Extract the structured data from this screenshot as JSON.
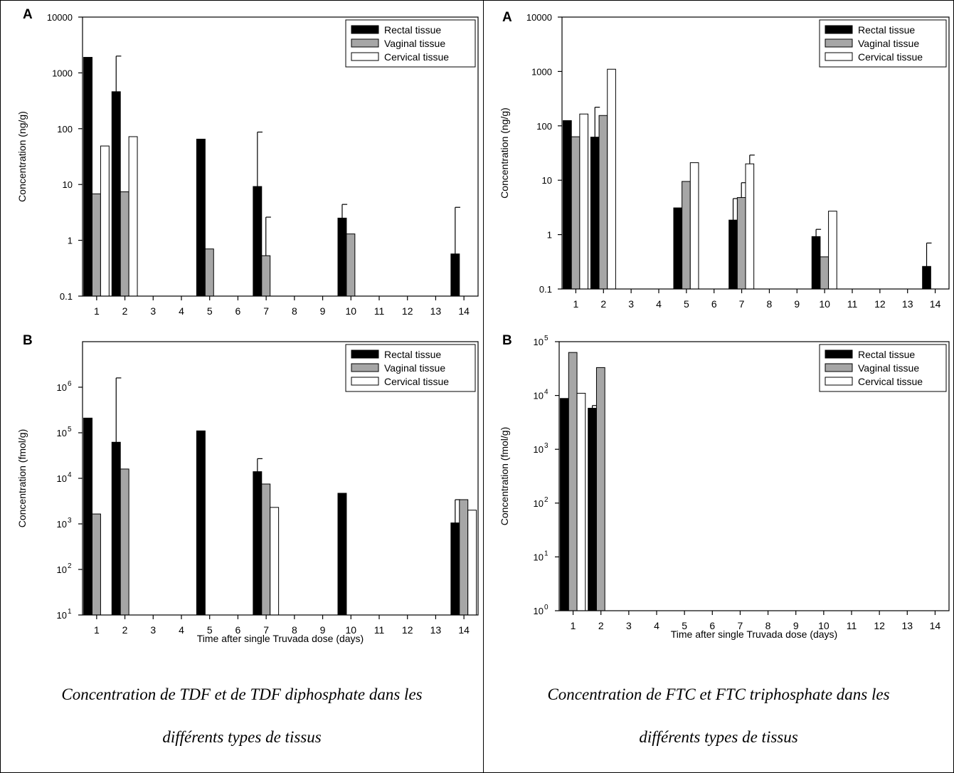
{
  "legend": [
    "Rectal tissue",
    "Vaginal tissue",
    "Cervical tissue"
  ],
  "colors": {
    "rectal": "#000000",
    "vaginal": "#a6a6a6",
    "cervical": "#ffffff",
    "axis": "#000000"
  },
  "captions": {
    "left": [
      "Concentration de TDF et de TDF diphosphate dans les",
      "différents types de tissus"
    ],
    "right": [
      "Concentration de FTC et FTC triphosphate dans les",
      "différents types de tissus"
    ]
  },
  "chart_data": [
    {
      "panel": "A",
      "type": "bar",
      "scale": "log",
      "ylabel": "Concentration (ng/g)",
      "xlabel": "",
      "ylim": [
        0.1,
        10000
      ],
      "yticks": [
        0.1,
        1,
        10,
        100,
        1000,
        10000
      ],
      "ytick_labels": [
        "0.1",
        "1",
        "10",
        "100",
        "1000",
        "10000"
      ],
      "categories": [
        "1",
        "2",
        "3",
        "4",
        "5",
        "6",
        "7",
        "8",
        "9",
        "10",
        "11",
        "12",
        "13",
        "14"
      ],
      "series": [
        {
          "name": "Rectal tissue",
          "values": [
            1900,
            460,
            null,
            null,
            65,
            null,
            9.2,
            null,
            null,
            2.5,
            null,
            null,
            null,
            0.57
          ],
          "errors": [
            null,
            2000,
            null,
            null,
            null,
            null,
            87,
            null,
            null,
            4.4,
            null,
            null,
            null,
            3.9
          ]
        },
        {
          "name": "Vaginal tissue",
          "values": [
            6.8,
            7.4,
            null,
            null,
            0.7,
            null,
            0.53,
            null,
            null,
            1.3,
            null,
            null,
            null,
            null
          ],
          "errors": [
            null,
            null,
            null,
            null,
            null,
            null,
            2.6,
            null,
            null,
            null,
            null,
            null,
            null,
            null
          ]
        },
        {
          "name": "Cervical tissue",
          "values": [
            49,
            72,
            null,
            null,
            null,
            null,
            null,
            null,
            null,
            null,
            null,
            null,
            null,
            null
          ],
          "errors": [
            null,
            null,
            null,
            null,
            null,
            null,
            null,
            null,
            null,
            null,
            null,
            null,
            null,
            null
          ]
        }
      ]
    },
    {
      "panel": "B",
      "type": "bar",
      "scale": "log",
      "ylabel": "Concentration (fmol/g)",
      "xlabel": "Time after single Truvada dose (days)",
      "ylim": [
        10,
        10000000
      ],
      "yticks": [
        10,
        100,
        1000,
        10000,
        100000,
        1000000
      ],
      "ytick_labels": [
        [
          "10",
          "1"
        ],
        [
          "10",
          "2"
        ],
        [
          "10",
          "3"
        ],
        [
          "10",
          "4"
        ],
        [
          "10",
          "5"
        ],
        [
          "10",
          "6"
        ]
      ],
      "categories": [
        "1",
        "2",
        "3",
        "4",
        "5",
        "6",
        "7",
        "8",
        "9",
        "10",
        "11",
        "12",
        "13",
        "14"
      ],
      "series": [
        {
          "name": "Rectal tissue",
          "values": [
            210000,
            62000,
            null,
            null,
            110000,
            null,
            14000,
            null,
            null,
            4700,
            null,
            null,
            null,
            1050
          ],
          "errors": [
            null,
            1600000,
            null,
            null,
            null,
            null,
            27000,
            null,
            null,
            null,
            null,
            null,
            null,
            3400
          ]
        },
        {
          "name": "Vaginal tissue",
          "values": [
            1650,
            16000,
            null,
            null,
            null,
            null,
            7500,
            null,
            null,
            null,
            null,
            null,
            null,
            3400
          ],
          "errors": [
            null,
            null,
            null,
            null,
            null,
            null,
            null,
            null,
            null,
            null,
            null,
            null,
            null,
            null
          ]
        },
        {
          "name": "Cervical tissue",
          "values": [
            null,
            null,
            null,
            null,
            null,
            null,
            2300,
            null,
            null,
            null,
            null,
            null,
            null,
            2000
          ],
          "errors": [
            null,
            null,
            null,
            null,
            null,
            null,
            null,
            null,
            null,
            null,
            null,
            null,
            null,
            null
          ]
        }
      ]
    },
    {
      "panel": "A",
      "type": "bar",
      "scale": "log",
      "ylabel": "Concentration (ng/g)",
      "xlabel": "",
      "ylim": [
        0.1,
        10000
      ],
      "yticks": [
        0.1,
        1,
        10,
        100,
        1000,
        10000
      ],
      "ytick_labels": [
        "0.1",
        "1",
        "10",
        "100",
        "1000",
        "10000"
      ],
      "categories": [
        "1",
        "2",
        "3",
        "4",
        "5",
        "6",
        "7",
        "8",
        "9",
        "10",
        "11",
        "12",
        "13",
        "14"
      ],
      "series": [
        {
          "name": "Rectal tissue",
          "values": [
            125,
            62,
            null,
            null,
            3.1,
            null,
            1.85,
            null,
            null,
            0.92,
            null,
            null,
            null,
            0.26
          ],
          "errors": [
            null,
            220,
            null,
            null,
            null,
            null,
            4.6,
            null,
            null,
            1.25,
            null,
            null,
            null,
            0.7
          ]
        },
        {
          "name": "Vaginal tissue",
          "values": [
            63,
            155,
            null,
            null,
            9.5,
            null,
            4.8,
            null,
            null,
            0.39,
            null,
            null,
            null,
            null
          ],
          "errors": [
            null,
            null,
            null,
            null,
            null,
            null,
            9,
            null,
            null,
            null,
            null,
            null,
            null,
            null
          ]
        },
        {
          "name": "Cervical tissue",
          "values": [
            165,
            1100,
            null,
            null,
            21,
            null,
            20,
            null,
            null,
            2.7,
            null,
            null,
            null,
            null
          ],
          "errors": [
            null,
            null,
            null,
            null,
            null,
            null,
            29,
            null,
            null,
            null,
            null,
            null,
            null,
            null
          ]
        }
      ]
    },
    {
      "panel": "B",
      "type": "bar",
      "scale": "log",
      "ylabel": "Concentration (fmol/g)",
      "xlabel": "Time after single Truvada dose (days)",
      "ylim": [
        1,
        100000
      ],
      "yticks": [
        1,
        10,
        100,
        1000,
        10000,
        100000
      ],
      "ytick_labels": [
        [
          "10",
          "0"
        ],
        [
          "10",
          "1"
        ],
        [
          "10",
          "2"
        ],
        [
          "10",
          "3"
        ],
        [
          "10",
          "4"
        ],
        [
          "10",
          "5"
        ]
      ],
      "categories": [
        "1",
        "2",
        "3",
        "4",
        "5",
        "6",
        "7",
        "8",
        "9",
        "10",
        "11",
        "12",
        "13",
        "14"
      ],
      "series": [
        {
          "name": "Rectal tissue",
          "values": [
            8800,
            5800,
            null,
            null,
            null,
            null,
            null,
            null,
            null,
            null,
            null,
            null,
            null,
            null
          ],
          "errors": [
            null,
            6500,
            null,
            null,
            null,
            null,
            null,
            null,
            null,
            null,
            null,
            null,
            null,
            null
          ]
        },
        {
          "name": "Vaginal tissue",
          "values": [
            63000,
            33000,
            null,
            null,
            null,
            null,
            null,
            null,
            null,
            null,
            null,
            null,
            null,
            null
          ],
          "errors": [
            null,
            null,
            null,
            null,
            null,
            null,
            null,
            null,
            null,
            null,
            null,
            null,
            null,
            null
          ]
        },
        {
          "name": "Cervical tissue",
          "values": [
            11000,
            null,
            null,
            null,
            null,
            null,
            null,
            null,
            null,
            null,
            null,
            null,
            null,
            null
          ],
          "errors": [
            null,
            null,
            null,
            null,
            null,
            null,
            null,
            null,
            null,
            null,
            null,
            null,
            null,
            null
          ]
        }
      ]
    }
  ]
}
